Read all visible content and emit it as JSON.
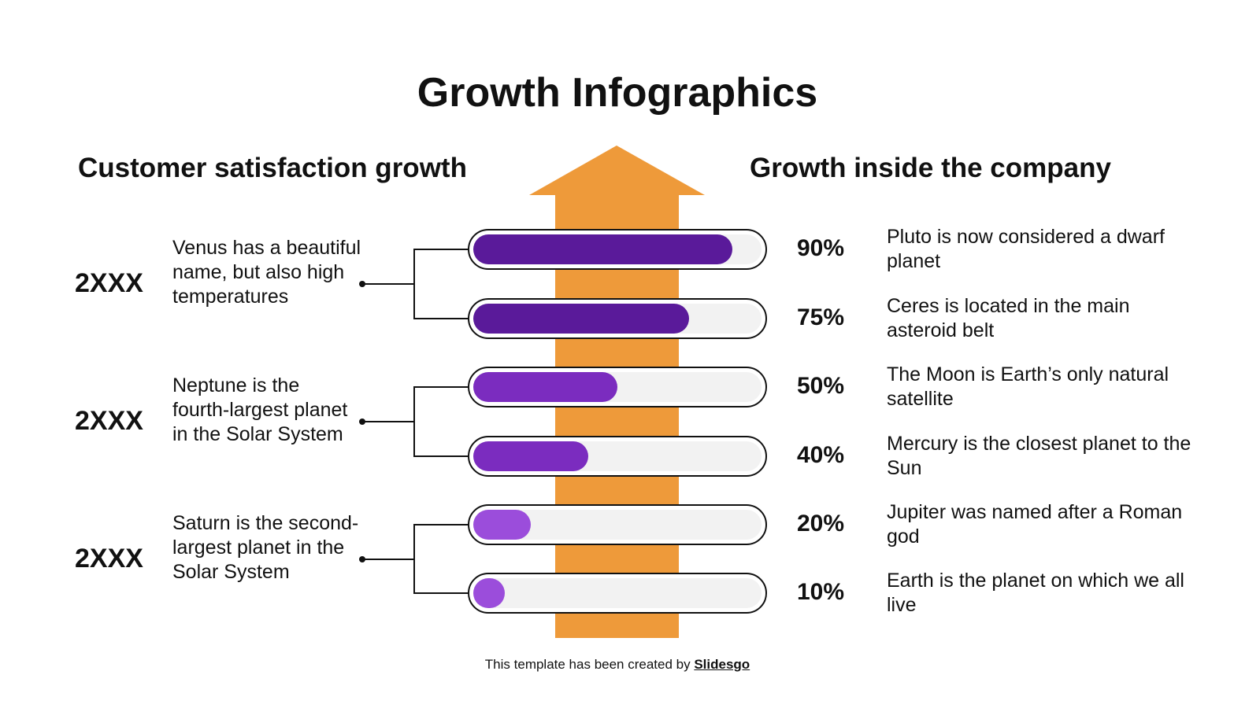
{
  "title": "Growth Infographics",
  "left_heading": "Customer satisfaction growth",
  "right_heading": "Growth inside the company",
  "colors": {
    "arrow": "#ee9a3a",
    "dark_purple": "#5a1a9a",
    "purple": "#7b2cbf",
    "light_purple": "#9b4ddb",
    "track": "#f2f2f2"
  },
  "groups": [
    {
      "year": "2XXX",
      "text": "Venus has a beautiful name, but also high temperatures"
    },
    {
      "year": "2XXX",
      "text": "Neptune is the fourth-largest planet in the Solar System"
    },
    {
      "year": "2XXX",
      "text": "Saturn is the second-largest planet in the Solar System"
    }
  ],
  "bars": [
    {
      "value": 90,
      "label": "90%",
      "text": "Pluto is now considered a dwarf planet",
      "color": "#5a1a9a"
    },
    {
      "value": 75,
      "label": "75%",
      "text": "Ceres is located in the main asteroid belt",
      "color": "#5a1a9a"
    },
    {
      "value": 50,
      "label": "50%",
      "text": "The Moon is Earth’s only natural satellite",
      "color": "#7b2cbf"
    },
    {
      "value": 40,
      "label": "40%",
      "text": "Mercury is the closest planet to the Sun",
      "color": "#7b2cbf"
    },
    {
      "value": 20,
      "label": "20%",
      "text": "Jupiter was named after a Roman god",
      "color": "#9b4ddb"
    },
    {
      "value": 10,
      "label": "10%",
      "text": "Earth is the planet on which we all live",
      "color": "#9b4ddb"
    }
  ],
  "footer": {
    "text": "This template has been created by ",
    "brand": "Slidesgo"
  }
}
